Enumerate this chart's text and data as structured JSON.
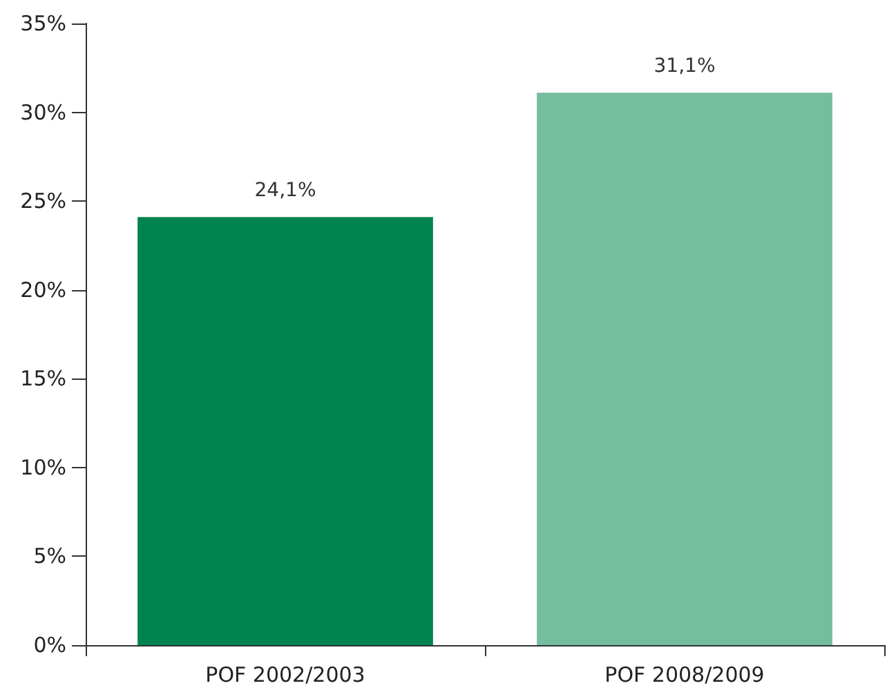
{
  "chart_data": {
    "type": "bar",
    "categories": [
      "POF 2002/2003",
      "POF 2008/2009"
    ],
    "values": [
      24.1,
      31.1
    ],
    "colors": [
      "#00834e",
      "#74bd9e"
    ],
    "value_labels": [
      "24,1%",
      "31,1%"
    ],
    "ylim": [
      0,
      35
    ],
    "yticks": [
      {
        "value": 0,
        "label": "0%"
      },
      {
        "value": 5,
        "label": "5%"
      },
      {
        "value": 10,
        "label": "10%"
      },
      {
        "value": 15,
        "label": "15%"
      },
      {
        "value": 20,
        "label": "20%"
      },
      {
        "value": 25,
        "label": "25%"
      },
      {
        "value": 30,
        "label": "30%"
      },
      {
        "value": 35,
        "label": "35%"
      }
    ],
    "grid": false
  }
}
